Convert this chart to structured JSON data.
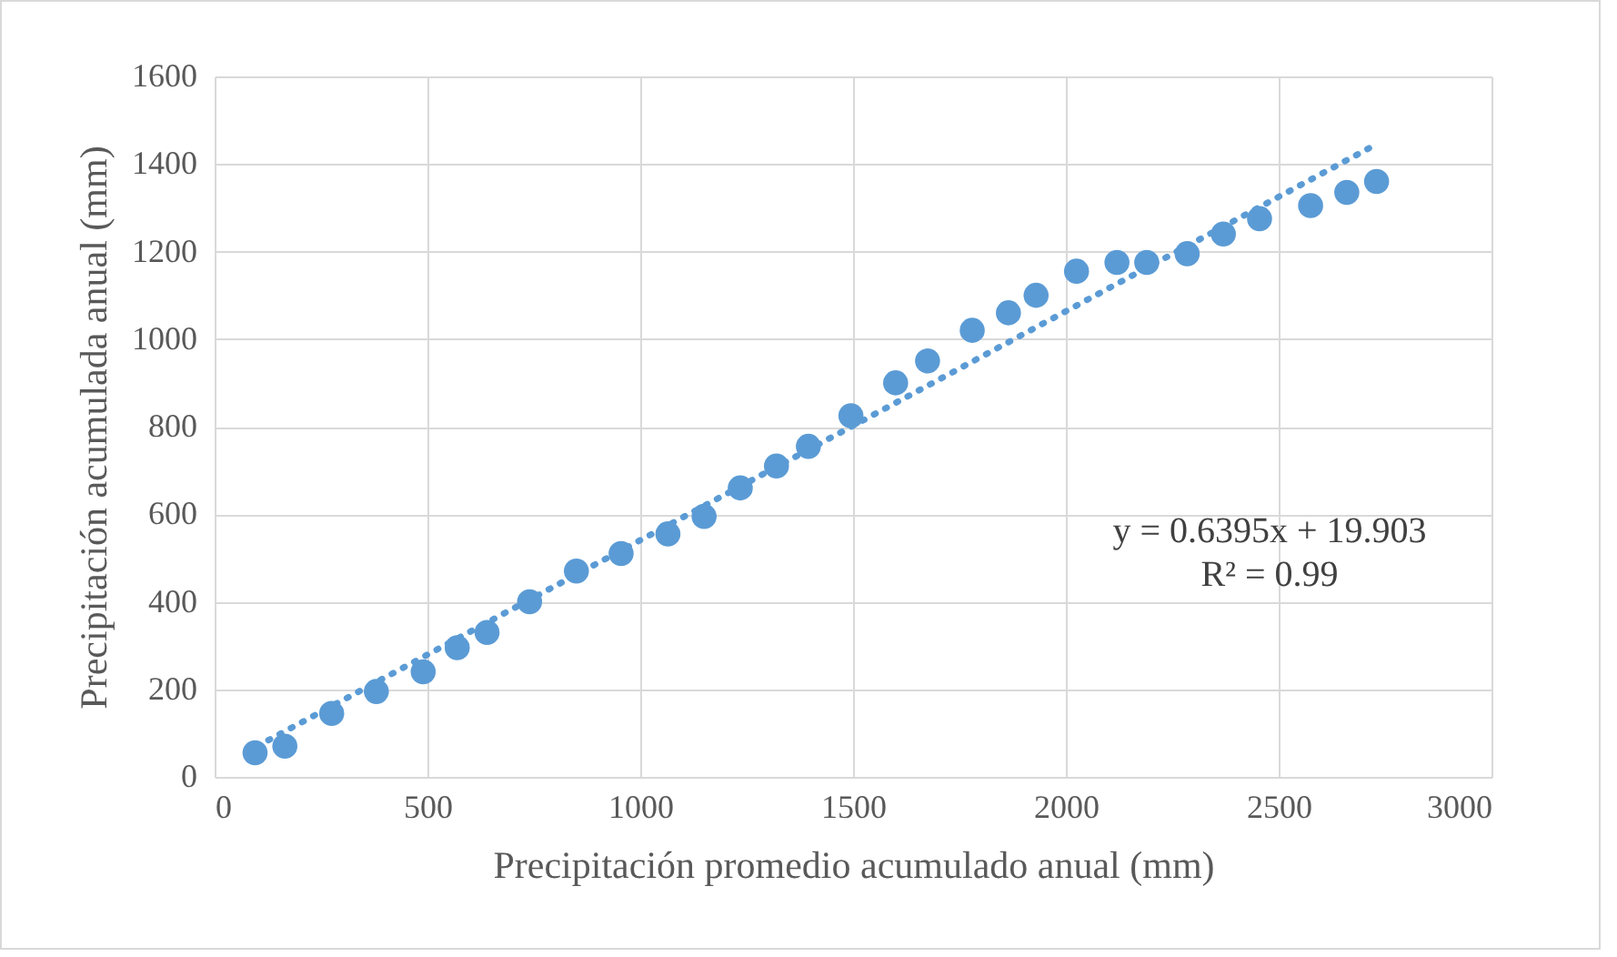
{
  "chart_data": {
    "type": "scatter",
    "xlabel": "Precipitación promedio acumulado anual (mm)",
    "ylabel": "Precipitación acumulada anual (mm)",
    "annotations": [
      "y = 0.6395x + 19.903",
      "R² = 0.99"
    ],
    "x": [
      95,
      165,
      275,
      380,
      490,
      570,
      640,
      740,
      850,
      955,
      1065,
      1150,
      1235,
      1320,
      1395,
      1495,
      1600,
      1675,
      1780,
      1865,
      1930,
      2025,
      2120,
      2190,
      2285,
      2370,
      2455,
      2575,
      2660,
      2730
    ],
    "series": [
      {
        "color": "#5b9bd5",
        "values": [
          55,
          70,
          145,
          195,
          240,
          295,
          330,
          400,
          470,
          510,
          555,
          595,
          660,
          710,
          755,
          825,
          900,
          950,
          1020,
          1060,
          1100,
          1155,
          1175,
          1175,
          1195,
          1240,
          1275,
          1305,
          1335,
          1360
        ]
      },
      {
        "type": "line",
        "color": "#5b9bd5",
        "line_style": "dotted",
        "marker": "none",
        "x": [
          100,
          2720
        ],
        "values": [
          70,
          1440
        ]
      }
    ],
    "xlim": [
      0,
      3000
    ],
    "xticks": [
      0,
      500,
      1000,
      1500,
      2000,
      2500,
      3000
    ],
    "ylim": [
      0,
      1600
    ],
    "yticks": [
      0,
      200,
      400,
      600,
      800,
      1000,
      1200,
      1400,
      1600
    ],
    "grid": true,
    "marker": "circle"
  }
}
